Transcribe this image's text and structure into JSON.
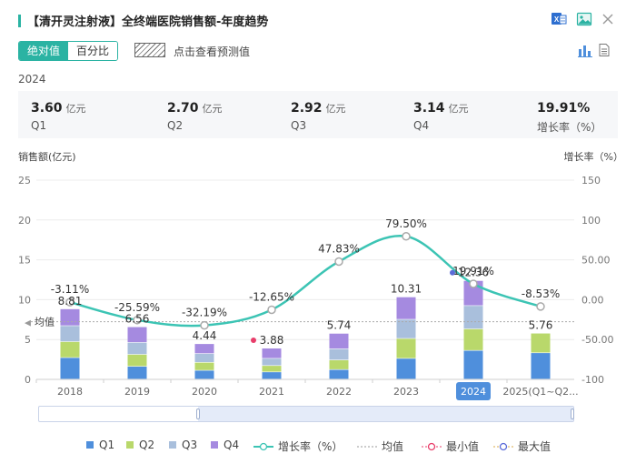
{
  "header": {
    "title": "【清开灵注射液】全终端医院销售额-年度趋势",
    "icons": [
      "excel-export-icon",
      "image-export-icon",
      "close-icon"
    ]
  },
  "toolbar": {
    "abs_label": "绝对值",
    "pct_label": "百分比",
    "forecast_label": "点击查看预测值",
    "icons": [
      "bar-chart-icon",
      "table-view-icon"
    ]
  },
  "summary": {
    "year": "2024",
    "unit": "亿元",
    "items": [
      {
        "value": "3.60",
        "unit": "亿元",
        "label": "Q1"
      },
      {
        "value": "2.70",
        "unit": "亿元",
        "label": "Q2"
      },
      {
        "value": "2.92",
        "unit": "亿元",
        "label": "Q3"
      },
      {
        "value": "3.14",
        "unit": "亿元",
        "label": "Q4"
      },
      {
        "value": "19.91%",
        "unit": "",
        "label": "增长率（%）"
      }
    ]
  },
  "colors": {
    "accent": "#2bb3a3",
    "q1": "#4f8fdc",
    "q2": "#b9d86b",
    "q3": "#a9bfdc",
    "q4": "#a58ae0",
    "growth_line": "#3cc4b4",
    "max_marker": "#5b6bd8",
    "min_marker": "#e83d6a",
    "highlight_tick": "#4f8fdc"
  },
  "chart_data": {
    "type": "bar",
    "stacked": true,
    "categories": [
      "2018",
      "2019",
      "2020",
      "2021",
      "2022",
      "2023",
      "2024",
      "2025(Q1~Q2..."
    ],
    "ylabel": "销售额(亿元)",
    "y2label": "增长率（%）",
    "ylim": [
      0,
      25
    ],
    "y2lim": [
      -100,
      150
    ],
    "yticks": [
      "0",
      "5",
      "10",
      "15",
      "20",
      "25"
    ],
    "y2ticks": [
      "-100",
      "-50.00",
      "0.00",
      "50.00",
      "100",
      "150"
    ],
    "series": [
      {
        "name": "Q1",
        "values": [
          2.7,
          1.6,
          1.1,
          0.9,
          1.2,
          2.6,
          3.6,
          3.3
        ]
      },
      {
        "name": "Q2",
        "values": [
          2.0,
          1.5,
          1.0,
          0.8,
          1.2,
          2.5,
          2.7,
          2.46
        ]
      },
      {
        "name": "Q3",
        "values": [
          2.0,
          1.5,
          1.1,
          0.9,
          1.4,
          2.4,
          2.92,
          0
        ]
      },
      {
        "name": "Q4",
        "values": [
          2.11,
          1.96,
          1.24,
          1.28,
          1.94,
          2.81,
          3.14,
          0
        ]
      }
    ],
    "totals": [
      8.81,
      6.56,
      4.44,
      3.88,
      5.74,
      10.31,
      12.36,
      5.76
    ],
    "total_labels": [
      "8.81",
      "6.56",
      "4.44",
      "3.88",
      "5.74",
      "10.31",
      "12.36",
      "5.76"
    ],
    "growth": {
      "name": "增长率（%）",
      "values": [
        -3.11,
        -25.59,
        -32.19,
        -12.65,
        47.83,
        79.5,
        19.91,
        -8.53
      ],
      "labels": [
        "-3.11%",
        "-25.59%",
        "-32.19%",
        "-12.65%",
        "47.83%",
        "79.50%",
        "19.91%",
        "-8.53%"
      ]
    },
    "average": {
      "label": "均值",
      "value": 7.23
    },
    "min_index": 3,
    "max_index": 6,
    "highlighted_category": "2024",
    "legend": [
      "Q1",
      "Q2",
      "Q3",
      "Q4",
      "增长率（%）",
      "均值",
      "最小值",
      "最大值"
    ]
  }
}
